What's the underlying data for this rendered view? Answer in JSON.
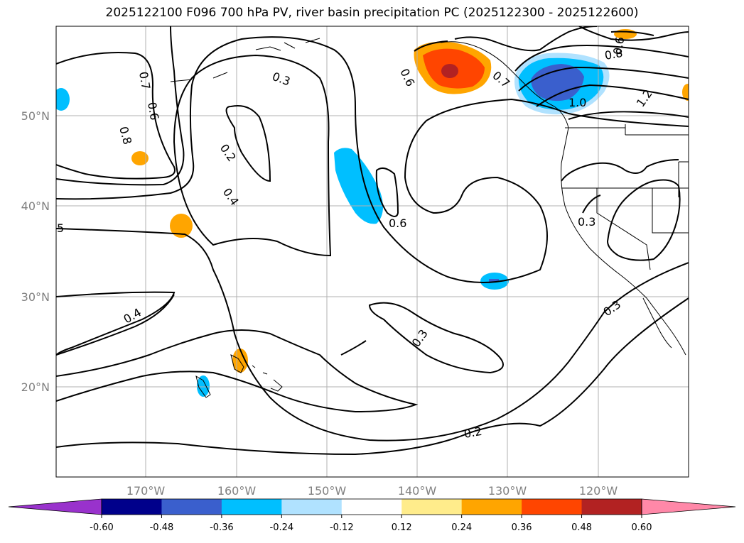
{
  "title": "2025122100 F096 700 hPa PV, river basin precipitation PC (2025122300 - 2025122600)",
  "map": {
    "lat_labels": [
      "50°N",
      "40°N",
      "30°N",
      "20°N"
    ],
    "lon_labels": [
      "170°W",
      "160°W",
      "150°W",
      "140°W",
      "130°W",
      "120°W"
    ],
    "contour_labels": [
      "0.7",
      "0.6",
      "0.8",
      "0.3",
      "0.2",
      "0.4",
      "5",
      "0.4",
      "0.6",
      "0.6",
      "0.3",
      "0.3",
      "0.2",
      "0.3",
      "0.8",
      "1.0",
      "1.2",
      "0.6",
      "0.7"
    ],
    "shading_legend": {
      "positive_levels": [
        "0.12",
        "0.24",
        "0.36",
        "0.48",
        "0.60"
      ],
      "negative_levels": [
        "-0.12",
        "-0.24",
        "-0.36",
        "-0.48",
        "-0.60"
      ]
    }
  },
  "colorbar": {
    "colors": [
      "#9932cc",
      "#00008b",
      "#3a5fcd",
      "#00bfff",
      "#b0e2ff",
      "#ffffff",
      "#ffec8b",
      "#ffa500",
      "#ff4500",
      "#b22222",
      "#ff88a8"
    ],
    "labels": [
      "-0.60",
      "-0.48",
      "-0.36",
      "-0.24",
      "-0.12",
      "0.12",
      "0.24",
      "0.36",
      "0.48",
      "0.60"
    ]
  }
}
